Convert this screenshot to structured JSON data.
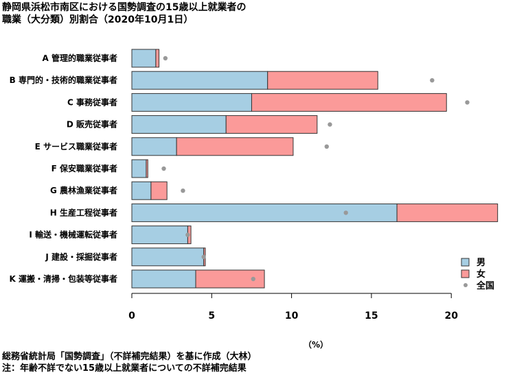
{
  "title_lines": [
    "静岡県浜松市南区における国勢調査の15歳以上就業者の",
    "職業（大分類）別割合（2020年10月1日）"
  ],
  "notes": [
    "総務省統計局「国勢調査」（不詳補完結果）を基に作成（大林）",
    "注：年齢不詳でない15歳以上就業者についての不詳補完結果"
  ],
  "chart_data": {
    "type": "bar",
    "orientation": "horizontal",
    "stacked": true,
    "categories": [
      "A 管理的職業従事者",
      "B 専門的・技術的職業従事者",
      "C 事務従事者",
      "D 販売従事者",
      "E サービス職業従事者",
      "F 保安職業従事者",
      "G 農林漁業従事者",
      "H 生産工程従事者",
      "I 輸送・機械運転従事者",
      "J 建設・採掘従事者",
      "K 運搬・清掃・包装等従事者"
    ],
    "series": [
      {
        "name": "男",
        "color": "#a6cee3",
        "values": [
          1.5,
          8.5,
          7.5,
          5.9,
          2.8,
          0.9,
          1.2,
          16.6,
          3.5,
          4.5,
          4.0
        ]
      },
      {
        "name": "女",
        "color": "#fb9a99",
        "values": [
          0.2,
          6.9,
          12.2,
          5.7,
          7.3,
          0.1,
          1.0,
          6.3,
          0.2,
          0.1,
          4.3
        ]
      }
    ],
    "reference": {
      "name": "全国",
      "color": "#999999",
      "values": [
        2.1,
        18.8,
        21.0,
        12.4,
        12.2,
        2.0,
        3.2,
        13.4,
        3.5,
        4.5,
        7.6
      ]
    },
    "xlim": [
      0,
      23
    ],
    "xticks": [
      0,
      5,
      10,
      15,
      20
    ],
    "xlabel": "（%）",
    "legend_position": "bottom-right"
  }
}
